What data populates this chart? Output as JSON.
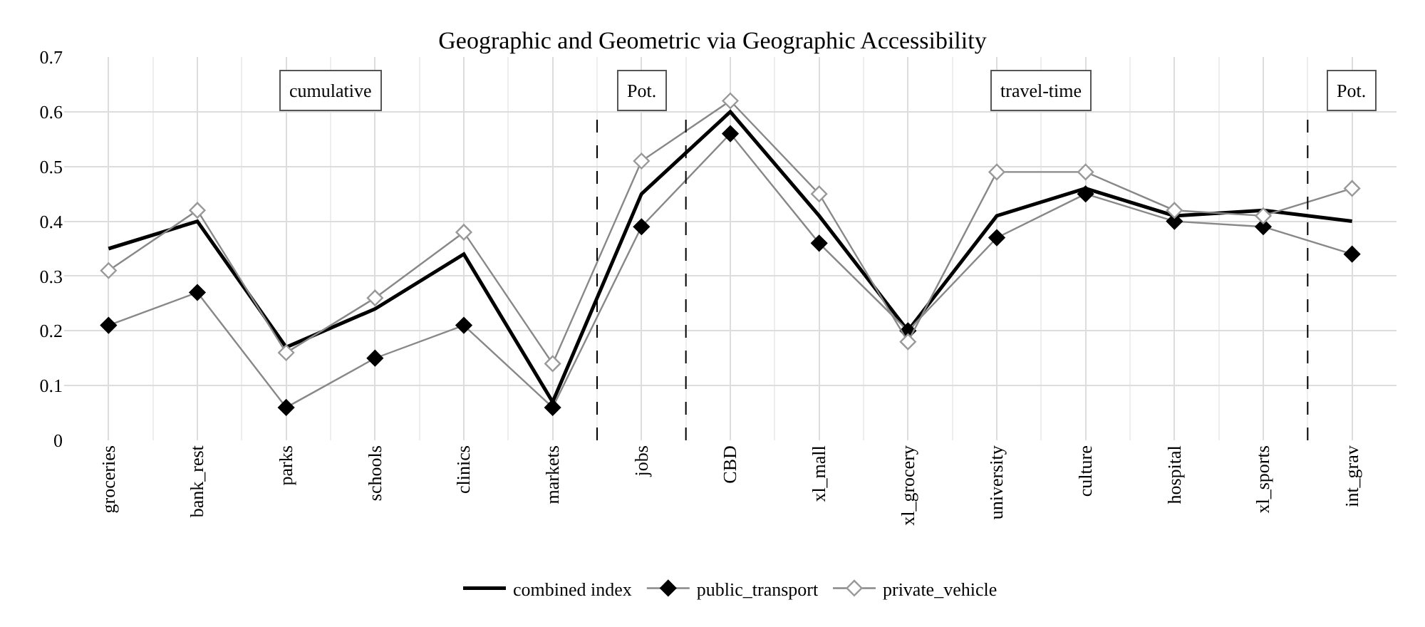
{
  "chart_data": {
    "type": "line",
    "title": "Geographic and Geometric via Geographic Accessibility",
    "categories": [
      "groceries",
      "bank_rest",
      "parks",
      "schools",
      "clinics",
      "markets",
      "jobs",
      "CBD",
      "xl_mall",
      "xl_grocery",
      "university",
      "culture",
      "hospital",
      "xl_sports",
      "int_grav"
    ],
    "series": [
      {
        "name": "combined index",
        "color": "#000000",
        "marker": "none",
        "values": [
          0.35,
          0.4,
          0.17,
          0.24,
          0.34,
          0.07,
          0.45,
          0.6,
          0.41,
          0.2,
          0.41,
          0.46,
          0.41,
          0.42,
          0.4
        ]
      },
      {
        "name": "public_transport",
        "color": "#000000",
        "marker": "diamond",
        "values": [
          0.21,
          0.27,
          0.06,
          0.15,
          0.21,
          0.06,
          0.39,
          0.56,
          0.36,
          0.2,
          0.37,
          0.45,
          0.4,
          0.39,
          0.34
        ]
      },
      {
        "name": "private_vehicle",
        "color": "#999999",
        "marker": "diamond-open",
        "values": [
          0.31,
          0.42,
          0.16,
          0.26,
          0.38,
          0.14,
          0.51,
          0.62,
          0.45,
          0.18,
          0.49,
          0.49,
          0.42,
          0.41,
          0.46
        ]
      }
    ],
    "ylim": [
      0,
      0.7
    ],
    "yticks": [
      0,
      0.1,
      0.2,
      0.3,
      0.4,
      0.5,
      0.6,
      0.7
    ],
    "grid": true,
    "legend": "bottom",
    "annotations": [
      "cumulative",
      "Pot.",
      "travel-time",
      "Pot."
    ]
  }
}
